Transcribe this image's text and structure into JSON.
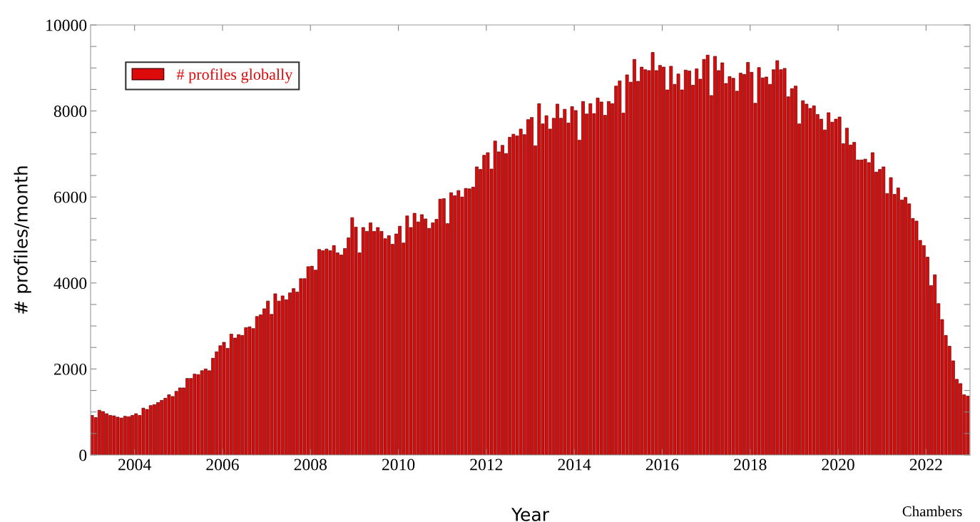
{
  "chart_data": {
    "type": "bar",
    "xlabel": "Year",
    "ylabel": "# profiles/month",
    "annotations": [
      "Chambers"
    ],
    "x": [
      "2003-01",
      "2003-02",
      "2003-03",
      "2003-04",
      "2003-05",
      "2003-06",
      "2003-07",
      "2003-08",
      "2003-09",
      "2003-10",
      "2003-11",
      "2003-12",
      "2004-01",
      "2004-02",
      "2004-03",
      "2004-04",
      "2004-05",
      "2004-06",
      "2004-07",
      "2004-08",
      "2004-09",
      "2004-10",
      "2004-11",
      "2004-12",
      "2005-01",
      "2005-02",
      "2005-03",
      "2005-04",
      "2005-05",
      "2005-06",
      "2005-07",
      "2005-08",
      "2005-09",
      "2005-10",
      "2005-11",
      "2005-12",
      "2006-01",
      "2006-02",
      "2006-03",
      "2006-04",
      "2006-05",
      "2006-06",
      "2006-07",
      "2006-08",
      "2006-09",
      "2006-10",
      "2006-11",
      "2006-12",
      "2007-01",
      "2007-02",
      "2007-03",
      "2007-04",
      "2007-05",
      "2007-06",
      "2007-07",
      "2007-08",
      "2007-09",
      "2007-10",
      "2007-11",
      "2007-12",
      "2008-01",
      "2008-02",
      "2008-03",
      "2008-04",
      "2008-05",
      "2008-06",
      "2008-07",
      "2008-08",
      "2008-09",
      "2008-10",
      "2008-11",
      "2008-12",
      "2009-01",
      "2009-02",
      "2009-03",
      "2009-04",
      "2009-05",
      "2009-06",
      "2009-07",
      "2009-08",
      "2009-09",
      "2009-10",
      "2009-11",
      "2009-12",
      "2010-01",
      "2010-02",
      "2010-03",
      "2010-04",
      "2010-05",
      "2010-06",
      "2010-07",
      "2010-08",
      "2010-09",
      "2010-10",
      "2010-11",
      "2010-12",
      "2011-01",
      "2011-02",
      "2011-03",
      "2011-04",
      "2011-05",
      "2011-06",
      "2011-07",
      "2011-08",
      "2011-09",
      "2011-10",
      "2011-11",
      "2011-12",
      "2012-01",
      "2012-02",
      "2012-03",
      "2012-04",
      "2012-05",
      "2012-06",
      "2012-07",
      "2012-08",
      "2012-09",
      "2012-10",
      "2012-11",
      "2012-12",
      "2013-01",
      "2013-02",
      "2013-03",
      "2013-04",
      "2013-05",
      "2013-06",
      "2013-07",
      "2013-08",
      "2013-09",
      "2013-10",
      "2013-11",
      "2013-12",
      "2014-01",
      "2014-02",
      "2014-03",
      "2014-04",
      "2014-05",
      "2014-06",
      "2014-07",
      "2014-08",
      "2014-09",
      "2014-10",
      "2014-11",
      "2014-12",
      "2015-01",
      "2015-02",
      "2015-03",
      "2015-04",
      "2015-05",
      "2015-06",
      "2015-07",
      "2015-08",
      "2015-09",
      "2015-10",
      "2015-11",
      "2015-12",
      "2016-01",
      "2016-02",
      "2016-03",
      "2016-04",
      "2016-05",
      "2016-06",
      "2016-07",
      "2016-08",
      "2016-09",
      "2016-10",
      "2016-11",
      "2016-12",
      "2017-01",
      "2017-02",
      "2017-03",
      "2017-04",
      "2017-05",
      "2017-06",
      "2017-07",
      "2017-08",
      "2017-09",
      "2017-10",
      "2017-11",
      "2017-12",
      "2018-01",
      "2018-02",
      "2018-03",
      "2018-04",
      "2018-05",
      "2018-06",
      "2018-07",
      "2018-08",
      "2018-09",
      "2018-10",
      "2018-11",
      "2018-12",
      "2019-01",
      "2019-02",
      "2019-03",
      "2019-04",
      "2019-05",
      "2019-06",
      "2019-07",
      "2019-08",
      "2019-09",
      "2019-10",
      "2019-11",
      "2019-12",
      "2020-01",
      "2020-02",
      "2020-03",
      "2020-04",
      "2020-05",
      "2020-06",
      "2020-07",
      "2020-08",
      "2020-09",
      "2020-10",
      "2020-11",
      "2020-12",
      "2021-01",
      "2021-02",
      "2021-03",
      "2021-04",
      "2021-05",
      "2021-06",
      "2021-07",
      "2021-08",
      "2021-09",
      "2021-10",
      "2021-11",
      "2021-12",
      "2022-01",
      "2022-02",
      "2022-03",
      "2022-04",
      "2022-05",
      "2022-06",
      "2022-07",
      "2022-08",
      "2022-09",
      "2022-10",
      "2022-11",
      "2022-12"
    ],
    "legend": "top left",
    "grid": false,
    "series": [
      {
        "name": "# profiles globally",
        "color": "#dd0a0a",
        "values": [
          920,
          870,
          1040,
          1010,
          960,
          920,
          910,
          880,
          860,
          900,
          890,
          920,
          960,
          920,
          1090,
          1060,
          1150,
          1170,
          1220,
          1270,
          1320,
          1400,
          1360,
          1480,
          1560,
          1560,
          1780,
          1780,
          1880,
          1870,
          1960,
          2000,
          1960,
          2250,
          2400,
          2540,
          2620,
          2480,
          2810,
          2720,
          2800,
          2780,
          2960,
          2980,
          2940,
          3220,
          3260,
          3400,
          3580,
          3270,
          3750,
          3580,
          3700,
          3610,
          3770,
          3870,
          3790,
          4100,
          4100,
          4380,
          4390,
          4300,
          4780,
          4750,
          4790,
          4750,
          4870,
          4700,
          4650,
          4800,
          5050,
          5520,
          5300,
          4700,
          5290,
          5200,
          5400,
          5200,
          5290,
          5200,
          5030,
          5100,
          4900,
          5140,
          5320,
          4930,
          5560,
          5290,
          5620,
          5420,
          5590,
          5490,
          5270,
          5400,
          5480,
          5950,
          5960,
          5380,
          6100,
          6030,
          6150,
          6000,
          6200,
          6190,
          6230,
          6700,
          6640,
          6970,
          7030,
          6650,
          7300,
          7050,
          7200,
          7010,
          7390,
          7460,
          7420,
          7580,
          7450,
          7800,
          7850,
          7190,
          8170,
          7700,
          7890,
          7580,
          7830,
          8160,
          7830,
          8040,
          7720,
          8100,
          8010,
          7320,
          8220,
          7930,
          8170,
          7940,
          8300,
          8210,
          7900,
          8220,
          8170,
          8580,
          8700,
          7950,
          8840,
          8670,
          9200,
          8690,
          9020,
          8960,
          8940,
          9360,
          8940,
          9060,
          9020,
          8490,
          9040,
          8620,
          8860,
          8490,
          8950,
          8930,
          8600,
          8980,
          8740,
          9200,
          9300,
          8360,
          9270,
          8940,
          9120,
          8640,
          8800,
          8760,
          8460,
          8880,
          8850,
          9130,
          8900,
          8180,
          9010,
          8770,
          8790,
          8620,
          8960,
          9170,
          8960,
          8990,
          8330,
          8520,
          8580,
          7700,
          8240,
          8160,
          8060,
          8120,
          7920,
          7810,
          7560,
          7960,
          7740,
          7810,
          7860,
          7240,
          7600,
          7210,
          7270,
          6860,
          6860,
          6880,
          6800,
          7030,
          6580,
          6640,
          6700,
          6080,
          6450,
          6060,
          6210,
          5930,
          5990,
          5840,
          5500,
          5440,
          4990,
          4870,
          4600,
          3940,
          4190,
          3520,
          3150,
          2780,
          2530,
          2190,
          1760,
          1660,
          1400,
          1370
        ]
      }
    ],
    "xlim": [
      "2003-01",
      "2023-01"
    ],
    "xticks": [
      "2004",
      "2006",
      "2008",
      "2010",
      "2012",
      "2014",
      "2016",
      "2018",
      "2020",
      "2022"
    ],
    "ylim": [
      0,
      10000
    ],
    "yticks": [
      0,
      {
        "value": 500,
        "label": null
      },
      {
        "value": 1000,
        "label": null
      },
      {
        "value": 1500,
        "label": null
      },
      2000,
      {
        "value": 2500,
        "label": null
      },
      {
        "value": 3000,
        "label": null
      },
      {
        "value": 3500,
        "label": null
      },
      4000,
      {
        "value": 4500,
        "label": null
      },
      {
        "value": 5000,
        "label": null
      },
      {
        "value": 5500,
        "label": null
      },
      6000,
      {
        "value": 6500,
        "label": null
      },
      {
        "value": 7000,
        "label": null
      },
      {
        "value": 7500,
        "label": null
      },
      8000,
      {
        "value": 8500,
        "label": null
      },
      {
        "value": 9000,
        "label": null
      },
      {
        "value": 9500,
        "label": null
      },
      10000
    ]
  }
}
